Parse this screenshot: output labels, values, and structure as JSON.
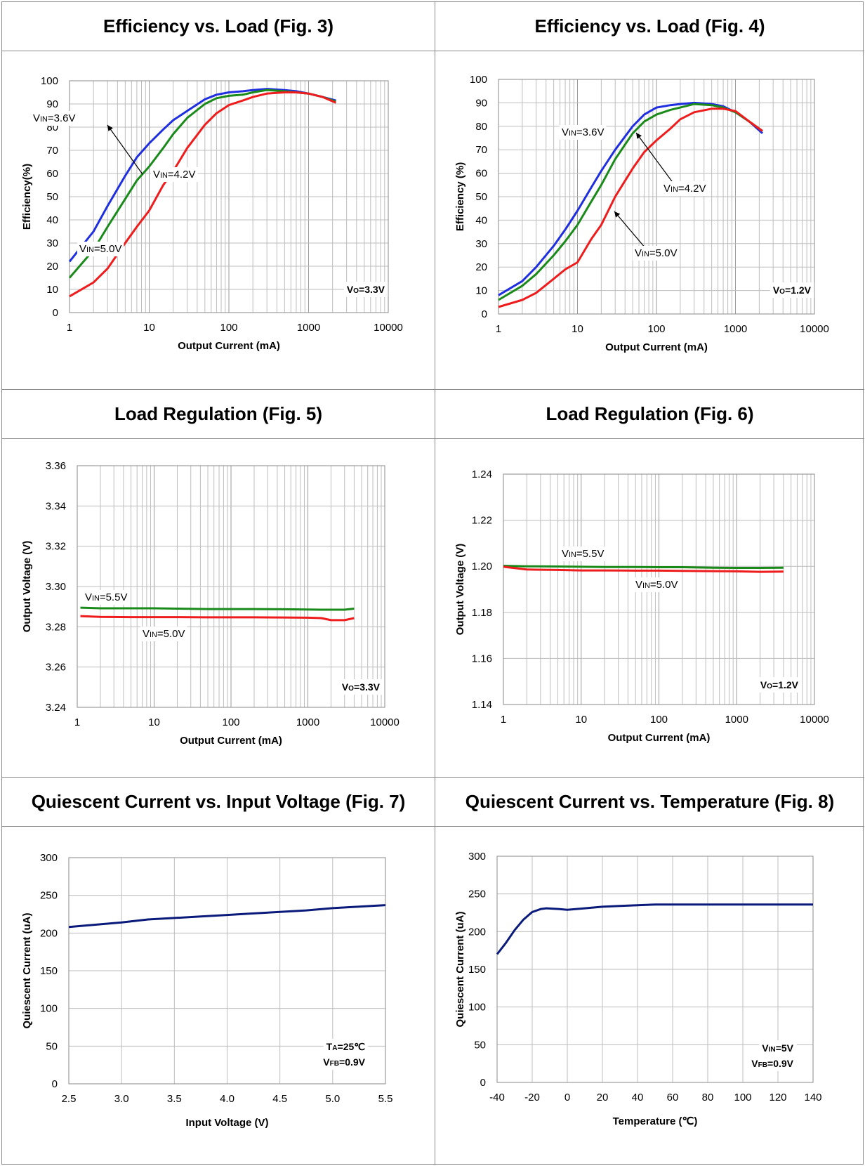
{
  "figures": [
    {
      "title": "Efficiency vs. Load (Fig. 3)"
    },
    {
      "title": "Efficiency vs. Load (Fig. 4)"
    },
    {
      "title": "Load Regulation (Fig. 5)"
    },
    {
      "title": "Load Regulation (Fig. 6)"
    },
    {
      "title": "Quiescent Current vs. Input Voltage (Fig. 7)"
    },
    {
      "title": "Quiescent Current vs. Temperature (Fig. 8)"
    }
  ],
  "colors": {
    "blue": "#1f2fe0",
    "green": "#1a8a1a",
    "red": "#ee1c1c",
    "navy": "#0a1a7a",
    "grid": "#bdbdbd"
  },
  "chart_data": [
    {
      "type": "line",
      "xscale": "log",
      "xlabel": "Output Current (mA)",
      "ylabel": "Efficiency(%)",
      "xticks": [
        "1",
        "10",
        "100",
        "1000",
        "10000"
      ],
      "xlim": [
        1,
        10000
      ],
      "ylim": [
        0,
        100
      ],
      "yticks": [
        "0",
        "10",
        "20",
        "30",
        "40",
        "50",
        "60",
        "70",
        "80",
        "90",
        "100"
      ],
      "series": [
        {
          "name": "VIN=3.6V",
          "color": "blue",
          "x": [
            1,
            2,
            3,
            5,
            7,
            10,
            15,
            20,
            30,
            50,
            70,
            100,
            150,
            200,
            300,
            500,
            700,
            1000,
            1500,
            2200
          ],
          "y": [
            22,
            35,
            46,
            59,
            67,
            73,
            79,
            83,
            87,
            92,
            94,
            95,
            95.5,
            96,
            96.5,
            96,
            95.5,
            94.5,
            93,
            91.5
          ]
        },
        {
          "name": "VIN=4.2V",
          "color": "green",
          "x": [
            1,
            2,
            3,
            5,
            7,
            10,
            15,
            20,
            30,
            50,
            70,
            100,
            150,
            200,
            300,
            500,
            700,
            1000,
            1500,
            2200
          ],
          "y": [
            15,
            27,
            37,
            49,
            57,
            63,
            71,
            77,
            84,
            90,
            92.5,
            93.5,
            94,
            95,
            96,
            95.5,
            95,
            94.5,
            93,
            91
          ]
        },
        {
          "name": "VIN=5.0V",
          "color": "red",
          "x": [
            1,
            2,
            3,
            5,
            7,
            10,
            15,
            20,
            30,
            50,
            70,
            100,
            150,
            200,
            300,
            500,
            700,
            1000,
            1500,
            2200
          ],
          "y": [
            7,
            13,
            19,
            30,
            37,
            44,
            55,
            61,
            71,
            81,
            86,
            89.5,
            91.5,
            93,
            94.5,
            95,
            95,
            94.5,
            93,
            90.5
          ]
        }
      ],
      "annotations": [
        {
          "base": "V",
          "sub": "IN",
          "rest": "=3.6V"
        },
        {
          "base": "V",
          "sub": "IN",
          "rest": "=4.2V"
        },
        {
          "base": "V",
          "sub": "IN",
          "rest": "=5.0V"
        }
      ],
      "note": [
        {
          "base": "V",
          "sub": "O",
          "rest": "=3.3V"
        }
      ]
    },
    {
      "type": "line",
      "xscale": "log",
      "xlabel": "Output Current (mA)",
      "ylabel": "Efficiency (%)",
      "xticks": [
        "1",
        "10",
        "100",
        "1000",
        "10000"
      ],
      "xlim": [
        1,
        10000
      ],
      "ylim": [
        0,
        100
      ],
      "yticks": [
        "0",
        "10",
        "20",
        "30",
        "40",
        "50",
        "60",
        "70",
        "80",
        "90",
        "100"
      ],
      "series": [
        {
          "name": "VIN=3.6V",
          "color": "blue",
          "x": [
            1,
            2,
            3,
            5,
            7,
            10,
            15,
            20,
            30,
            50,
            70,
            100,
            150,
            200,
            300,
            500,
            700,
            1000,
            1500,
            2200
          ],
          "y": [
            8,
            14,
            20,
            29,
            36,
            44,
            54,
            61,
            70,
            80,
            85,
            88,
            89,
            89.5,
            90,
            89.5,
            88.5,
            86,
            82,
            77
          ]
        },
        {
          "name": "VIN=4.2V",
          "color": "green",
          "x": [
            1,
            2,
            3,
            5,
            7,
            10,
            15,
            20,
            30,
            50,
            70,
            100,
            150,
            200,
            300,
            500,
            700,
            1000,
            1500,
            2200
          ],
          "y": [
            6,
            12,
            17,
            25,
            31,
            38,
            48,
            55,
            66,
            77,
            82,
            85,
            87,
            88,
            89.5,
            89,
            88,
            86,
            82,
            78
          ]
        },
        {
          "name": "VIN=5.0V",
          "color": "red",
          "x": [
            1,
            2,
            3,
            5,
            7,
            10,
            15,
            20,
            30,
            50,
            70,
            100,
            150,
            200,
            300,
            500,
            700,
            1000,
            1500,
            2200
          ],
          "y": [
            3,
            6,
            9,
            15,
            19,
            22,
            32,
            38,
            50,
            62,
            69,
            74,
            79,
            83,
            86,
            87.5,
            87.5,
            86.5,
            82,
            78
          ]
        }
      ],
      "annotations": [
        {
          "base": "V",
          "sub": "IN",
          "rest": "=3.6V"
        },
        {
          "base": "V",
          "sub": "IN",
          "rest": "=4.2V"
        },
        {
          "base": "V",
          "sub": "IN",
          "rest": "=5.0V"
        }
      ],
      "note": [
        {
          "base": "V",
          "sub": "O",
          "rest": "=1.2V"
        }
      ]
    },
    {
      "type": "line",
      "xscale": "log",
      "xlabel": "Output Current (mA)",
      "ylabel": "Output Voltage (V)",
      "xticks": [
        "1",
        "10",
        "100",
        "1000",
        "10000"
      ],
      "xlim": [
        1,
        10000
      ],
      "ylim": [
        3.24,
        3.36
      ],
      "yticks": [
        "3.24",
        "3.26",
        "3.28",
        "3.30",
        "3.32",
        "3.34",
        "3.36"
      ],
      "series": [
        {
          "name": "VIN=5.5V",
          "color": "green",
          "x": [
            1.1,
            2,
            5,
            10,
            20,
            50,
            100,
            200,
            500,
            1000,
            1500,
            2000,
            3000,
            4000
          ],
          "y": [
            3.2895,
            3.2892,
            3.2892,
            3.2892,
            3.289,
            3.2888,
            3.2888,
            3.2888,
            3.2887,
            3.2886,
            3.2885,
            3.2885,
            3.2885,
            3.289
          ]
        },
        {
          "name": "VIN=5.0V",
          "color": "red",
          "x": [
            1.1,
            2,
            5,
            10,
            20,
            50,
            100,
            200,
            500,
            1000,
            1500,
            2000,
            3000,
            4000
          ],
          "y": [
            3.2853,
            3.2849,
            3.2848,
            3.2848,
            3.2848,
            3.2847,
            3.2847,
            3.2847,
            3.2846,
            3.2845,
            3.2843,
            3.2833,
            3.2833,
            3.2843
          ]
        }
      ],
      "annotations": [
        {
          "base": "V",
          "sub": "IN",
          "rest": "=5.5V"
        },
        {
          "base": "V",
          "sub": "IN",
          "rest": "=5.0V"
        }
      ],
      "note": [
        {
          "base": "V",
          "sub": "O",
          "rest": "=3.3V"
        }
      ]
    },
    {
      "type": "line",
      "xscale": "log",
      "xlabel": "Output Current (mA)",
      "ylabel": "Output Voltage (V)",
      "xticks": [
        "1",
        "10",
        "100",
        "1000",
        "10000"
      ],
      "xlim": [
        1,
        10000
      ],
      "ylim": [
        1.14,
        1.24
      ],
      "yticks": [
        "1.14",
        "1.16",
        "1.18",
        "1.20",
        "1.22",
        "1.24"
      ],
      "series": [
        {
          "name": "VIN=5.5V",
          "color": "green",
          "x": [
            1,
            2,
            5,
            10,
            20,
            50,
            100,
            200,
            500,
            1000,
            2000,
            4000
          ],
          "y": [
            1.2002,
            1.2,
            1.1999,
            1.1998,
            1.1997,
            1.1997,
            1.1996,
            1.1996,
            1.1994,
            1.1993,
            1.1993,
            1.1994
          ]
        },
        {
          "name": "VIN=5.0V",
          "color": "red",
          "x": [
            1,
            2,
            5,
            10,
            20,
            50,
            100,
            200,
            500,
            1000,
            2000,
            4000
          ],
          "y": [
            1.1998,
            1.1986,
            1.1984,
            1.1982,
            1.1982,
            1.1981,
            1.1981,
            1.198,
            1.1979,
            1.1978,
            1.1976,
            1.1977
          ]
        }
      ],
      "annotations": [
        {
          "base": "V",
          "sub": "IN",
          "rest": "=5.5V"
        },
        {
          "base": "V",
          "sub": "IN",
          "rest": "=5.0V"
        }
      ],
      "note": [
        {
          "base": "V",
          "sub": "O",
          "rest": "=1.2V"
        }
      ]
    },
    {
      "type": "line",
      "xscale": "linear",
      "xlabel": "Input Voltage (V)",
      "ylabel": "Quiescent Current (uA)",
      "xticks": [
        "2.5",
        "3.0",
        "3.5",
        "4.0",
        "4.5",
        "5.0",
        "5.5"
      ],
      "xlim": [
        2.5,
        5.5
      ],
      "ylim": [
        0,
        300
      ],
      "yticks": [
        "0",
        "50",
        "100",
        "150",
        "200",
        "250",
        "300"
      ],
      "series": [
        {
          "name": "",
          "color": "navy",
          "x": [
            2.5,
            2.75,
            3.0,
            3.25,
            3.5,
            3.75,
            4.0,
            4.25,
            4.5,
            4.75,
            5.0,
            5.25,
            5.5
          ],
          "y": [
            208,
            211,
            214,
            218,
            220,
            222,
            224,
            226,
            228,
            230,
            233,
            235,
            237
          ]
        }
      ],
      "annotations": [],
      "note": [
        {
          "base": "T",
          "sub": "A",
          "rest": "=25℃"
        },
        {
          "base": "V",
          "sub": "FB",
          "rest": "=0.9V"
        }
      ]
    },
    {
      "type": "line",
      "xscale": "linear",
      "xlabel": "Temperature (℃)",
      "ylabel": "Quiescent Current (uA)",
      "xticks": [
        "-40",
        "-20",
        "0",
        "20",
        "40",
        "60",
        "80",
        "100",
        "120",
        "140"
      ],
      "xlim": [
        -40,
        140
      ],
      "ylim": [
        0,
        300
      ],
      "yticks": [
        "0",
        "50",
        "100",
        "150",
        "200",
        "250",
        "300"
      ],
      "series": [
        {
          "name": "",
          "color": "navy",
          "x": [
            -40,
            -35,
            -30,
            -25,
            -20,
            -15,
            -12,
            -5,
            0,
            10,
            20,
            30,
            40,
            50,
            60,
            80,
            100,
            120,
            140
          ],
          "y": [
            170,
            185,
            202,
            216,
            226,
            230,
            231,
            230,
            229,
            231,
            233,
            234,
            235,
            236,
            236,
            236,
            236,
            236,
            236
          ]
        }
      ],
      "annotations": [],
      "note": [
        {
          "base": "V",
          "sub": "IN",
          "rest": "=5V"
        },
        {
          "base": "V",
          "sub": "FB",
          "rest": "=0.9V"
        }
      ]
    }
  ]
}
